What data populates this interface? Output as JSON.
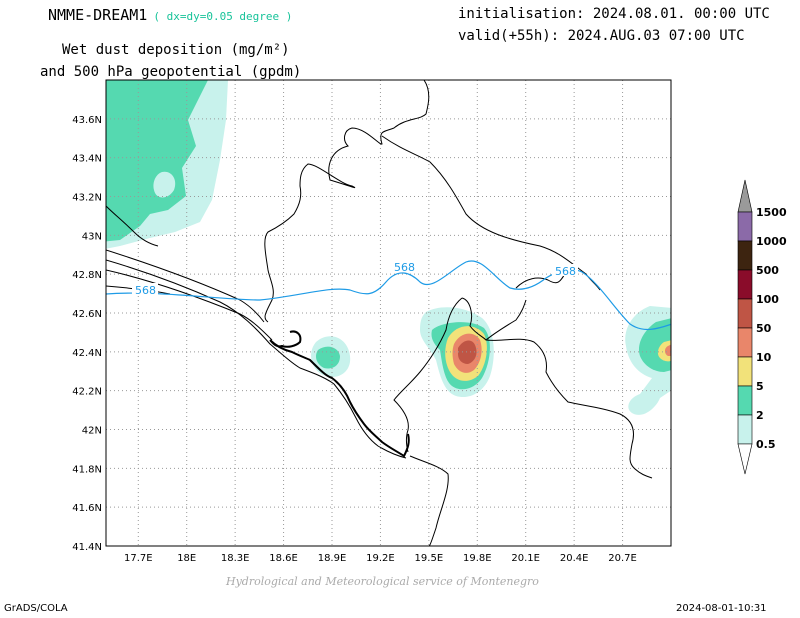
{
  "header": {
    "model_name": "NMME-DREAM1",
    "resolution": "( dx=dy=0.05 degree )",
    "variable_line1": "Wet dust deposition (mg/m²)",
    "variable_line2": "and 500 hPa geopotential (gpdm)",
    "initialisation": "initialisation: 2024.08.01. 00:00 UTC",
    "valid": "valid(+55h): 2024.AUG.03 07:00 UTC"
  },
  "map": {
    "lon_ticks": [
      "17.7E",
      "18E",
      "18.3E",
      "18.6E",
      "18.9E",
      "19.2E",
      "19.5E",
      "19.8E",
      "20.1E",
      "20.4E",
      "20.7E"
    ],
    "lat_ticks": [
      "43.6N",
      "43.4N",
      "43.2N",
      "43N",
      "42.8N",
      "42.6N",
      "42.4N",
      "42.2N",
      "42N",
      "41.8N",
      "41.6N",
      "41.4N"
    ],
    "lon_range": [
      17.5,
      21.0
    ],
    "lat_range": [
      41.4,
      43.8
    ],
    "gridlines": true,
    "contour_label": "568",
    "contour_color": "#1e9be6"
  },
  "colorbar": {
    "levels": [
      "1500",
      "1000",
      "500",
      "100",
      "50",
      "10",
      "5",
      "2",
      "0.5"
    ],
    "colors": [
      "#9a9a9a",
      "#8b6aa8",
      "#3d2410",
      "#8a0c2a",
      "#bf5545",
      "#e9866a",
      "#f2e27a",
      "#55d9b0",
      "#c8f2ec"
    ]
  },
  "footer": {
    "credit": "Hydrological and Meteorological service of Montenegro",
    "software": "GrADS/COLA",
    "timestamp": "2024-08-01-10:31"
  }
}
